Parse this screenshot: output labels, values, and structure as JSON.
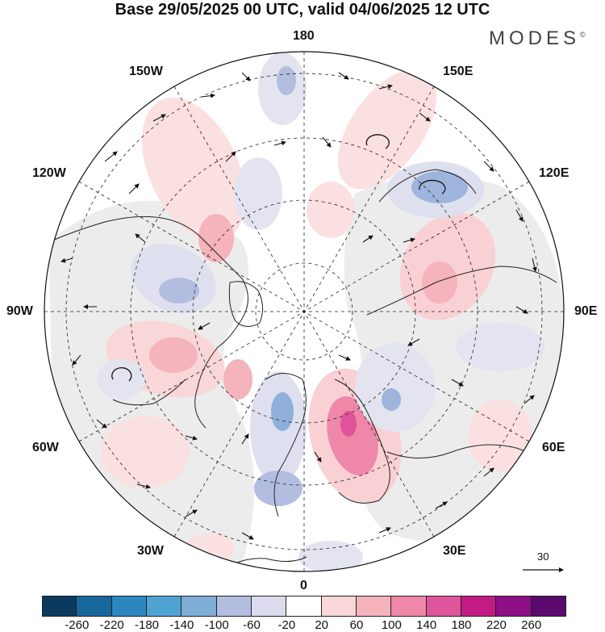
{
  "title": "Base 29/05/2025 00 UTC, valid 04/06/2025 12 UTC",
  "brand": "MODES",
  "brand_mark": "©",
  "longitude_labels": {
    "top": "180",
    "bottom": "0",
    "left": "90W",
    "right": "90E",
    "upper_left": "150W",
    "upper_right": "150E",
    "mid_left_upper": "120W",
    "mid_right_upper": "120E",
    "mid_left_lower": "60W",
    "mid_right_lower": "60E",
    "lower_left": "30W",
    "lower_right": "30E"
  },
  "reference_vector": {
    "label": "30"
  },
  "colorbar": {
    "ticks": [
      "-260",
      "-220",
      "-180",
      "-140",
      "-100",
      "-60",
      "-20",
      "20",
      "60",
      "100",
      "140",
      "180",
      "220",
      "260"
    ],
    "colors": [
      "#0b3a5e",
      "#16679b",
      "#2c87c0",
      "#4fa3d3",
      "#7eaed6",
      "#b3bde0",
      "#dcdcee",
      "#ffffff",
      "#f9d6d8",
      "#f5b3bc",
      "#ef87a9",
      "#e0549b",
      "#c21c84",
      "#8e0f86",
      "#5a0a6e"
    ]
  },
  "map_colors": {
    "land_bg": "#e9e9e9",
    "coast": "#222222"
  }
}
